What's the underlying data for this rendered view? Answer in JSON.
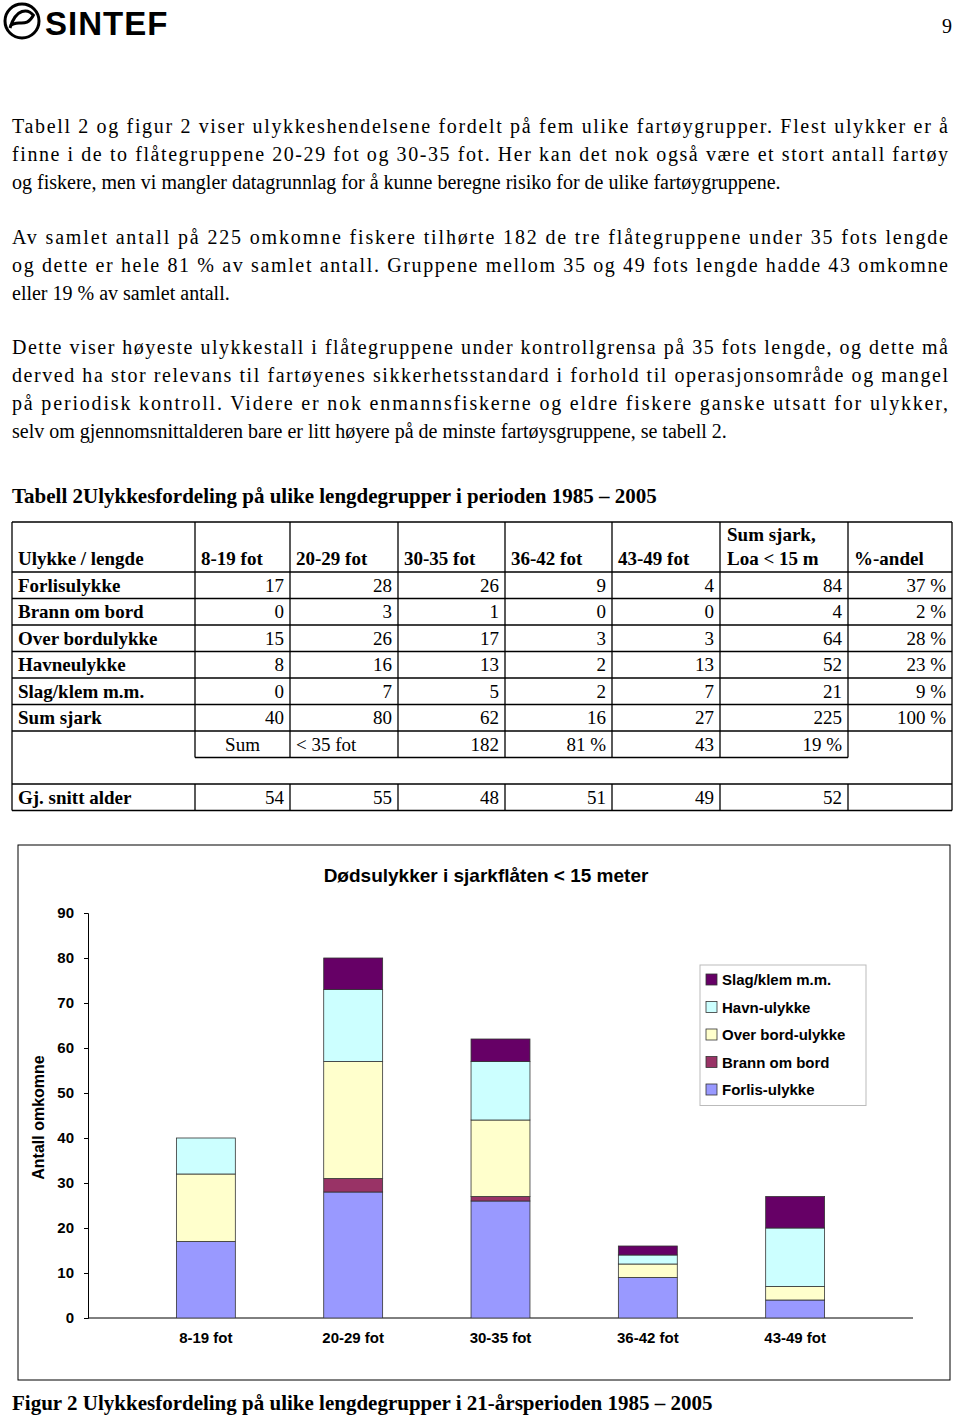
{
  "header": {
    "logo": "SINTEF",
    "page_number": 9
  },
  "paragraphs": [
    [
      "Tabell 2 og figur 2 viser ulykkeshendelsene fordelt på fem ulike fartøygrupper. Flest ulykker er å",
      "finne i de to flåtegruppene 20-29 fot og 30-35 fot. Her kan det nok også være et stort antall fartøy",
      "og fiskere, men vi mangler datagrunnlag for å kunne beregne risiko for de ulike fartøygruppene."
    ],
    [
      "Av samlet antall på 225 omkomne fiskere tilhørte 182 de tre flåtegruppene under 35 fots lengde",
      "og dette er hele 81 % av samlet antall. Gruppene mellom 35 og 49 fots lengde hadde 43 omkomne",
      "eller 19 % av samlet antall."
    ],
    [
      "Dette viser høyeste ulykkestall i flåtegruppene under kontrollgrensa på 35 fots lengde, og dette må",
      "derved ha stor relevans til fartøyenes sikkerhetsstandard i forhold til operasjonsområde og mangel",
      "på periodisk kontroll. Videre er nok enmannsfiskerne og eldre fiskere ganske utsatt for ulykker,",
      "selv om gjennomsnittalderen bare er litt høyere på de minste fartøysgruppene, se tabell 2."
    ]
  ],
  "table": {
    "title": "Tabell 2Ulykkesfordeling på ulike lengdegrupper i perioden 1985 – 2005",
    "header": [
      "Ulykke / lengde",
      "8-19 fot",
      "20-29 fot",
      "30-35 fot",
      "36-42 fot",
      "43-49 fot",
      [
        "Sum sjark,",
        "Loa < 15 m"
      ],
      "%-andel"
    ],
    "rows": [
      {
        "label": "Forlisulykke",
        "values": [
          17,
          28,
          26,
          9,
          4,
          84
        ],
        "share": "37 %"
      },
      {
        "label": "Brann om bord",
        "values": [
          0,
          3,
          1,
          0,
          0,
          4
        ],
        "share": "2 %"
      },
      {
        "label": "Over bordulykke",
        "values": [
          15,
          26,
          17,
          3,
          3,
          64
        ],
        "share": "28 %"
      },
      {
        "label": "Havneulykke",
        "values": [
          8,
          16,
          13,
          2,
          13,
          52
        ],
        "share": "23 %"
      },
      {
        "label": "Slag/klem m.m.",
        "values": [
          0,
          7,
          5,
          2,
          7,
          21
        ],
        "share": "9 %"
      },
      {
        "label": "Sum sjark",
        "values": [
          40,
          80,
          62,
          16,
          27,
          225
        ],
        "share": "100 %"
      }
    ],
    "sum_row": [
      "Sum",
      "< 35 fot",
      182,
      "81 %",
      43,
      "19 %"
    ],
    "age_row": {
      "label": "Gj. snitt alder",
      "values": [
        54,
        55,
        48,
        51,
        49,
        52
      ]
    }
  },
  "chart_data": {
    "type": "bar",
    "stacked": true,
    "title": "Dødsulykker i sjarkflåten < 15 meter",
    "y_label": "Antall omkomne",
    "categories": [
      "8-19 fot",
      "20-29 fot",
      "30-35 fot",
      "36-42 fot",
      "43-49 fot"
    ],
    "series": [
      {
        "name": "Forlis-ulykke",
        "color": "#9999ff",
        "values": [
          17,
          28,
          26,
          9,
          4
        ]
      },
      {
        "name": "Brann om bord",
        "color": "#993366",
        "values": [
          0,
          3,
          1,
          0,
          0
        ]
      },
      {
        "name": "Over bord-ulykke",
        "color": "#ffffcc",
        "values": [
          15,
          26,
          17,
          3,
          3
        ]
      },
      {
        "name": "Havn-ulykke",
        "color": "#ccffff",
        "values": [
          8,
          16,
          13,
          2,
          13
        ]
      },
      {
        "name": "Slag/klem m.m.",
        "color": "#660066",
        "values": [
          0,
          7,
          5,
          2,
          7
        ]
      }
    ],
    "ylim": [
      0,
      90
    ],
    "yticks": [
      0,
      10,
      20,
      30,
      40,
      50,
      60,
      70,
      80,
      90
    ],
    "grid": false,
    "legend": "right"
  },
  "caption": "Figur 2 Ulykkesfordeling på ulike lengdegrupper i 21-årsperioden 1985 – 2005"
}
